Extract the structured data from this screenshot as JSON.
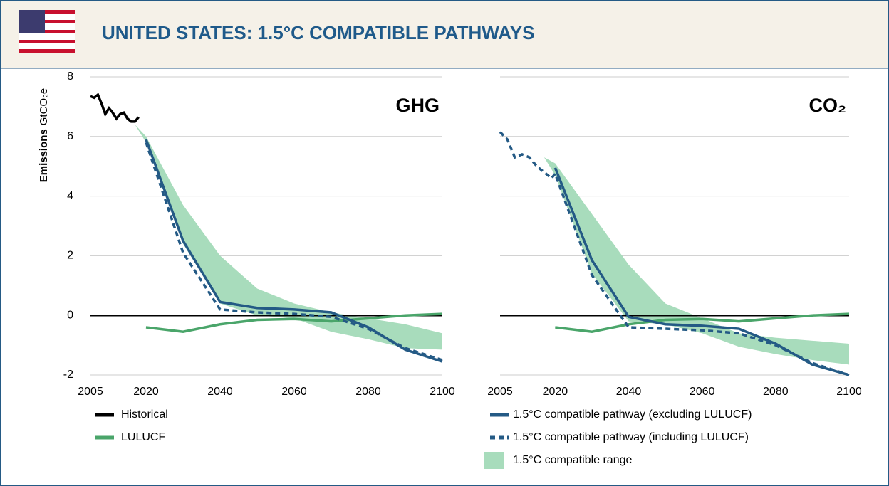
{
  "title": "UNITED STATES: 1.5°C COMPATIBLE PATHWAYS",
  "y_label": "Emissions",
  "y_unit": "GtCO₂e",
  "chart_data": [
    {
      "type": "line",
      "title": "GHG",
      "xlim": [
        2005,
        2100
      ],
      "ylim": [
        -2,
        8
      ],
      "xticks": [
        2005,
        2020,
        2040,
        2060,
        2080,
        2100
      ],
      "yticks": [
        -2,
        0,
        2,
        4,
        6,
        8
      ],
      "grid": true,
      "series": [
        {
          "name": "Historical",
          "color": "#000000",
          "style": "solid",
          "x": [
            2005,
            2006,
            2007,
            2008,
            2009,
            2010,
            2011,
            2012,
            2013,
            2014,
            2015,
            2016,
            2017,
            2018
          ],
          "values": [
            7.35,
            7.3,
            7.4,
            7.1,
            6.75,
            6.95,
            6.8,
            6.6,
            6.75,
            6.8,
            6.6,
            6.5,
            6.5,
            6.65
          ]
        },
        {
          "name": "LULUCF",
          "color": "#4aa56a",
          "style": "solid",
          "x": [
            2020,
            2030,
            2040,
            2050,
            2060,
            2070,
            2080,
            2090,
            2100
          ],
          "values": [
            -0.4,
            -0.55,
            -0.3,
            -0.15,
            -0.12,
            -0.2,
            -0.1,
            0,
            0.05
          ]
        },
        {
          "name": "1.5°C compatible pathway (excluding LULUCF)",
          "color": "#245a85",
          "style": "solid",
          "x": [
            2020,
            2030,
            2040,
            2050,
            2060,
            2070,
            2080,
            2090,
            2100
          ],
          "values": [
            5.9,
            2.5,
            0.45,
            0.25,
            0.2,
            0.1,
            -0.4,
            -1.15,
            -1.55
          ]
        },
        {
          "name": "1.5°C compatible pathway (including LULUCF)",
          "color": "#245a85",
          "style": "dashed",
          "x": [
            2020,
            2030,
            2040,
            2050,
            2060,
            2070,
            2080,
            2090,
            2100
          ],
          "values": [
            5.8,
            2.1,
            0.2,
            0.1,
            0.05,
            -0.05,
            -0.45,
            -1.1,
            -1.5
          ]
        },
        {
          "name": "1.5°C compatible range",
          "color": "#a8dcbc",
          "style": "band",
          "x": [
            2017,
            2020,
            2030,
            2040,
            2050,
            2060,
            2070,
            2080,
            2090,
            2100
          ],
          "upper": [
            6.4,
            6.0,
            3.7,
            2.0,
            0.9,
            0.4,
            0.1,
            -0.1,
            -0.3,
            -0.6
          ],
          "lower": [
            6.4,
            5.8,
            2.4,
            0.4,
            0.0,
            -0.1,
            -0.55,
            -0.8,
            -1.1,
            -1.15
          ]
        }
      ]
    },
    {
      "type": "line",
      "title": "CO₂",
      "xlim": [
        2005,
        2100
      ],
      "ylim": [
        -2,
        8
      ],
      "xticks": [
        2005,
        2020,
        2040,
        2060,
        2080,
        2100
      ],
      "yticks": [
        -2,
        0,
        2,
        4,
        6,
        8
      ],
      "grid": true,
      "series": [
        {
          "name": "LULUCF",
          "color": "#4aa56a",
          "style": "solid",
          "x": [
            2020,
            2030,
            2040,
            2050,
            2060,
            2070,
            2080,
            2090,
            2100
          ],
          "values": [
            -0.4,
            -0.55,
            -0.3,
            -0.15,
            -0.12,
            -0.2,
            -0.1,
            0,
            0.05
          ]
        },
        {
          "name": "1.5°C compatible range",
          "color": "#a8dcbc",
          "style": "band",
          "x": [
            2017,
            2020,
            2030,
            2040,
            2050,
            2060,
            2070,
            2080,
            2090,
            2100
          ],
          "upper": [
            5.3,
            5.1,
            3.4,
            1.7,
            0.4,
            -0.1,
            -0.6,
            -0.75,
            -0.85,
            -0.95
          ],
          "lower": [
            5.3,
            4.7,
            1.4,
            -0.2,
            -0.3,
            -0.6,
            -1.05,
            -1.3,
            -1.5,
            -1.65
          ]
        },
        {
          "name": "1.5°C compatible pathway (excluding LULUCF)",
          "color": "#245a85",
          "style": "solid",
          "x": [
            2020,
            2030,
            2040,
            2050,
            2060,
            2070,
            2080,
            2090,
            2100
          ],
          "values": [
            4.95,
            1.85,
            -0.05,
            -0.3,
            -0.35,
            -0.45,
            -0.95,
            -1.65,
            -2.0
          ]
        },
        {
          "name": "1.5°C compatible pathway (including LULUCF)",
          "color": "#245a85",
          "style": "dashed",
          "x": [
            2005,
            2007,
            2009,
            2011,
            2013,
            2015,
            2017,
            2019,
            2020,
            2030,
            2040,
            2050,
            2060,
            2070,
            2080,
            2090,
            2100
          ],
          "values": [
            6.15,
            5.9,
            5.3,
            5.4,
            5.3,
            5.0,
            4.8,
            4.6,
            4.75,
            1.35,
            -0.4,
            -0.45,
            -0.5,
            -0.6,
            -1.0,
            -1.6,
            -2.0
          ]
        }
      ]
    }
  ]
}
